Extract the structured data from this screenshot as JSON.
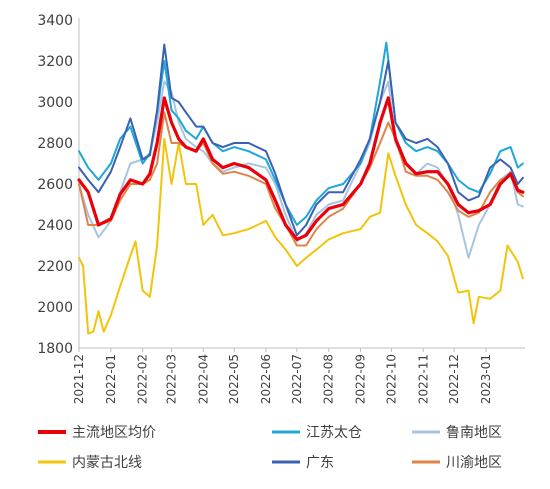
{
  "chart_data": {
    "type": "line",
    "title": "",
    "xlabel": "",
    "ylabel": "",
    "ylim": [
      1800,
      3400
    ],
    "yticks": [
      1800,
      2000,
      2200,
      2400,
      2600,
      2800,
      3000,
      3200,
      3400
    ],
    "grid": false,
    "legend_position": "bottom",
    "x_start": "2021-12",
    "x_end": "2023-01",
    "xticks": [
      "2021-12",
      "2022-01",
      "2022-02",
      "2022-03",
      "2022-04",
      "2022-05",
      "2022-06",
      "2022-07",
      "2022-08",
      "2022-09",
      "2022-10",
      "2022-11",
      "2022-12",
      "2023-01"
    ],
    "series": [
      {
        "name": "主流地区均价",
        "color": "#e8000b",
        "points": [
          [
            "2021-12-01",
            2620
          ],
          [
            "2021-12-10",
            2560
          ],
          [
            "2021-12-20",
            2400
          ],
          [
            "2022-01-01",
            2430
          ],
          [
            "2022-01-10",
            2550
          ],
          [
            "2022-01-20",
            2620
          ],
          [
            "2022-02-01",
            2600
          ],
          [
            "2022-02-08",
            2650
          ],
          [
            "2022-02-15",
            2800
          ],
          [
            "2022-02-22",
            3020
          ],
          [
            "2022-03-01",
            2900
          ],
          [
            "2022-03-08",
            2820
          ],
          [
            "2022-03-15",
            2780
          ],
          [
            "2022-03-25",
            2760
          ],
          [
            "2022-04-01",
            2820
          ],
          [
            "2022-04-10",
            2720
          ],
          [
            "2022-04-20",
            2680
          ],
          [
            "2022-05-01",
            2700
          ],
          [
            "2022-05-15",
            2680
          ],
          [
            "2022-06-01",
            2620
          ],
          [
            "2022-06-10",
            2520
          ],
          [
            "2022-06-20",
            2400
          ],
          [
            "2022-07-01",
            2330
          ],
          [
            "2022-07-10",
            2350
          ],
          [
            "2022-07-20",
            2420
          ],
          [
            "2022-08-01",
            2480
          ],
          [
            "2022-08-15",
            2500
          ],
          [
            "2022-09-01",
            2600
          ],
          [
            "2022-09-10",
            2700
          ],
          [
            "2022-09-20",
            2900
          ],
          [
            "2022-09-28",
            3020
          ],
          [
            "2022-10-05",
            2820
          ],
          [
            "2022-10-15",
            2700
          ],
          [
            "2022-10-25",
            2650
          ],
          [
            "2022-11-05",
            2660
          ],
          [
            "2022-11-15",
            2660
          ],
          [
            "2022-11-25",
            2600
          ],
          [
            "2022-12-05",
            2500
          ],
          [
            "2022-12-15",
            2460
          ],
          [
            "2022-12-25",
            2470
          ],
          [
            "2023-01-05",
            2500
          ],
          [
            "2023-01-15",
            2600
          ],
          [
            "2023-01-25",
            2650
          ],
          [
            "2023-02-01",
            2570
          ],
          [
            "2023-02-06",
            2560
          ]
        ]
      },
      {
        "name": "江苏太仓",
        "color": "#1ea7d8",
        "points": [
          [
            "2021-12-01",
            2760
          ],
          [
            "2021-12-10",
            2680
          ],
          [
            "2021-12-20",
            2620
          ],
          [
            "2022-01-01",
            2700
          ],
          [
            "2022-01-10",
            2820
          ],
          [
            "2022-01-20",
            2880
          ],
          [
            "2022-02-01",
            2700
          ],
          [
            "2022-02-08",
            2750
          ],
          [
            "2022-02-15",
            2950
          ],
          [
            "2022-02-22",
            3200
          ],
          [
            "2022-03-01",
            2960
          ],
          [
            "2022-03-08",
            2920
          ],
          [
            "2022-03-15",
            2860
          ],
          [
            "2022-03-25",
            2820
          ],
          [
            "2022-04-01",
            2880
          ],
          [
            "2022-04-10",
            2800
          ],
          [
            "2022-04-20",
            2760
          ],
          [
            "2022-05-01",
            2780
          ],
          [
            "2022-05-15",
            2760
          ],
          [
            "2022-06-01",
            2720
          ],
          [
            "2022-06-10",
            2620
          ],
          [
            "2022-06-20",
            2500
          ],
          [
            "2022-07-01",
            2400
          ],
          [
            "2022-07-10",
            2440
          ],
          [
            "2022-07-20",
            2520
          ],
          [
            "2022-08-01",
            2580
          ],
          [
            "2022-08-15",
            2600
          ],
          [
            "2022-09-01",
            2700
          ],
          [
            "2022-09-10",
            2820
          ],
          [
            "2022-09-20",
            3100
          ],
          [
            "2022-09-26",
            3290
          ],
          [
            "2022-10-05",
            2900
          ],
          [
            "2022-10-15",
            2800
          ],
          [
            "2022-10-25",
            2760
          ],
          [
            "2022-11-05",
            2780
          ],
          [
            "2022-11-15",
            2760
          ],
          [
            "2022-11-25",
            2700
          ],
          [
            "2022-12-05",
            2620
          ],
          [
            "2022-12-15",
            2580
          ],
          [
            "2022-12-25",
            2560
          ],
          [
            "2023-01-05",
            2650
          ],
          [
            "2023-01-15",
            2760
          ],
          [
            "2023-01-25",
            2780
          ],
          [
            "2023-02-01",
            2680
          ],
          [
            "2023-02-06",
            2700
          ]
        ]
      },
      {
        "name": "鲁南地区",
        "color": "#a9c4e0",
        "points": [
          [
            "2021-12-01",
            2600
          ],
          [
            "2021-12-10",
            2450
          ],
          [
            "2021-12-20",
            2340
          ],
          [
            "2022-01-01",
            2420
          ],
          [
            "2022-01-10",
            2560
          ],
          [
            "2022-01-20",
            2700
          ],
          [
            "2022-02-01",
            2720
          ],
          [
            "2022-02-08",
            2750
          ],
          [
            "2022-02-15",
            2900
          ],
          [
            "2022-02-22",
            3100
          ],
          [
            "2022-03-01",
            3050
          ],
          [
            "2022-03-08",
            2900
          ],
          [
            "2022-03-15",
            2820
          ],
          [
            "2022-03-25",
            2780
          ],
          [
            "2022-04-01",
            2760
          ],
          [
            "2022-04-10",
            2700
          ],
          [
            "2022-04-20",
            2660
          ],
          [
            "2022-05-01",
            2680
          ],
          [
            "2022-05-15",
            2700
          ],
          [
            "2022-06-01",
            2680
          ],
          [
            "2022-06-10",
            2600
          ],
          [
            "2022-06-20",
            2450
          ],
          [
            "2022-07-01",
            2320
          ],
          [
            "2022-07-10",
            2360
          ],
          [
            "2022-07-20",
            2450
          ],
          [
            "2022-08-01",
            2500
          ],
          [
            "2022-08-15",
            2520
          ],
          [
            "2022-09-01",
            2700
          ],
          [
            "2022-09-10",
            2800
          ],
          [
            "2022-09-20",
            3000
          ],
          [
            "2022-09-28",
            3100
          ],
          [
            "2022-10-05",
            2800
          ],
          [
            "2022-10-15",
            2700
          ],
          [
            "2022-10-25",
            2650
          ],
          [
            "2022-11-05",
            2700
          ],
          [
            "2022-11-15",
            2680
          ],
          [
            "2022-11-25",
            2600
          ],
          [
            "2022-12-05",
            2450
          ],
          [
            "2022-12-15",
            2240
          ],
          [
            "2022-12-25",
            2400
          ],
          [
            "2023-01-05",
            2500
          ],
          [
            "2023-01-15",
            2620
          ],
          [
            "2023-01-25",
            2660
          ],
          [
            "2023-02-01",
            2500
          ],
          [
            "2023-02-06",
            2490
          ]
        ]
      },
      {
        "name": "内蒙古北线",
        "color": "#f2c40c",
        "points": [
          [
            "2021-12-01",
            2240
          ],
          [
            "2021-12-05",
            2200
          ],
          [
            "2021-12-10",
            1870
          ],
          [
            "2021-12-15",
            1880
          ],
          [
            "2021-12-20",
            1980
          ],
          [
            "2021-12-25",
            1880
          ],
          [
            "2022-01-01",
            1960
          ],
          [
            "2022-01-10",
            2100
          ],
          [
            "2022-01-20",
            2250
          ],
          [
            "2022-01-25",
            2320
          ],
          [
            "2022-02-01",
            2080
          ],
          [
            "2022-02-08",
            2050
          ],
          [
            "2022-02-15",
            2300
          ],
          [
            "2022-02-22",
            2820
          ],
          [
            "2022-03-01",
            2600
          ],
          [
            "2022-03-08",
            2800
          ],
          [
            "2022-03-15",
            2600
          ],
          [
            "2022-03-25",
            2600
          ],
          [
            "2022-04-01",
            2400
          ],
          [
            "2022-04-10",
            2450
          ],
          [
            "2022-04-20",
            2350
          ],
          [
            "2022-05-01",
            2360
          ],
          [
            "2022-05-15",
            2380
          ],
          [
            "2022-06-01",
            2420
          ],
          [
            "2022-06-10",
            2340
          ],
          [
            "2022-06-20",
            2280
          ],
          [
            "2022-07-01",
            2200
          ],
          [
            "2022-07-10",
            2240
          ],
          [
            "2022-07-20",
            2280
          ],
          [
            "2022-08-01",
            2330
          ],
          [
            "2022-08-15",
            2360
          ],
          [
            "2022-09-01",
            2380
          ],
          [
            "2022-09-10",
            2440
          ],
          [
            "2022-09-20",
            2460
          ],
          [
            "2022-09-28",
            2750
          ],
          [
            "2022-10-05",
            2640
          ],
          [
            "2022-10-15",
            2500
          ],
          [
            "2022-10-25",
            2400
          ],
          [
            "2022-11-05",
            2360
          ],
          [
            "2022-11-15",
            2320
          ],
          [
            "2022-11-25",
            2250
          ],
          [
            "2022-12-05",
            2070
          ],
          [
            "2022-12-15",
            2080
          ],
          [
            "2022-12-20",
            1920
          ],
          [
            "2022-12-25",
            2050
          ],
          [
            "2023-01-05",
            2040
          ],
          [
            "2023-01-15",
            2080
          ],
          [
            "2023-01-22",
            2300
          ],
          [
            "2023-02-01",
            2220
          ],
          [
            "2023-02-06",
            2140
          ]
        ]
      },
      {
        "name": "广东",
        "color": "#3a62b3",
        "points": [
          [
            "2021-12-01",
            2680
          ],
          [
            "2021-12-10",
            2620
          ],
          [
            "2021-12-20",
            2560
          ],
          [
            "2022-01-01",
            2660
          ],
          [
            "2022-01-10",
            2780
          ],
          [
            "2022-01-20",
            2920
          ],
          [
            "2022-02-01",
            2720
          ],
          [
            "2022-02-08",
            2740
          ],
          [
            "2022-02-15",
            2960
          ],
          [
            "2022-02-22",
            3280
          ],
          [
            "2022-03-01",
            3020
          ],
          [
            "2022-03-08",
            3000
          ],
          [
            "2022-03-15",
            2950
          ],
          [
            "2022-03-25",
            2880
          ],
          [
            "2022-04-01",
            2880
          ],
          [
            "2022-04-10",
            2800
          ],
          [
            "2022-04-20",
            2780
          ],
          [
            "2022-05-01",
            2800
          ],
          [
            "2022-05-15",
            2800
          ],
          [
            "2022-06-01",
            2760
          ],
          [
            "2022-06-10",
            2650
          ],
          [
            "2022-06-20",
            2500
          ],
          [
            "2022-07-01",
            2350
          ],
          [
            "2022-07-10",
            2400
          ],
          [
            "2022-07-20",
            2500
          ],
          [
            "2022-08-01",
            2560
          ],
          [
            "2022-08-15",
            2560
          ],
          [
            "2022-09-01",
            2720
          ],
          [
            "2022-09-10",
            2820
          ],
          [
            "2022-09-20",
            3000
          ],
          [
            "2022-09-28",
            3200
          ],
          [
            "2022-10-05",
            2900
          ],
          [
            "2022-10-15",
            2820
          ],
          [
            "2022-10-25",
            2800
          ],
          [
            "2022-11-05",
            2820
          ],
          [
            "2022-11-15",
            2780
          ],
          [
            "2022-11-25",
            2700
          ],
          [
            "2022-12-05",
            2560
          ],
          [
            "2022-12-15",
            2520
          ],
          [
            "2022-12-25",
            2540
          ],
          [
            "2023-01-05",
            2680
          ],
          [
            "2023-01-15",
            2720
          ],
          [
            "2023-01-25",
            2680
          ],
          [
            "2023-02-01",
            2600
          ],
          [
            "2023-02-06",
            2630
          ]
        ]
      },
      {
        "name": "川渝地区",
        "color": "#e0844a",
        "points": [
          [
            "2021-12-01",
            2600
          ],
          [
            "2021-12-10",
            2400
          ],
          [
            "2021-12-20",
            2400
          ],
          [
            "2022-01-01",
            2420
          ],
          [
            "2022-01-10",
            2520
          ],
          [
            "2022-01-20",
            2600
          ],
          [
            "2022-02-01",
            2600
          ],
          [
            "2022-02-08",
            2620
          ],
          [
            "2022-02-15",
            2700
          ],
          [
            "2022-02-22",
            2950
          ],
          [
            "2022-03-01",
            2800
          ],
          [
            "2022-03-08",
            2800
          ],
          [
            "2022-03-15",
            2780
          ],
          [
            "2022-03-25",
            2760
          ],
          [
            "2022-04-01",
            2800
          ],
          [
            "2022-04-10",
            2700
          ],
          [
            "2022-04-20",
            2650
          ],
          [
            "2022-05-01",
            2660
          ],
          [
            "2022-05-15",
            2640
          ],
          [
            "2022-06-01",
            2600
          ],
          [
            "2022-06-10",
            2480
          ],
          [
            "2022-06-20",
            2400
          ],
          [
            "2022-07-01",
            2300
          ],
          [
            "2022-07-10",
            2300
          ],
          [
            "2022-07-20",
            2380
          ],
          [
            "2022-08-01",
            2440
          ],
          [
            "2022-08-15",
            2480
          ],
          [
            "2022-09-01",
            2600
          ],
          [
            "2022-09-10",
            2680
          ],
          [
            "2022-09-20",
            2800
          ],
          [
            "2022-09-28",
            2900
          ],
          [
            "2022-10-05",
            2820
          ],
          [
            "2022-10-15",
            2660
          ],
          [
            "2022-10-25",
            2640
          ],
          [
            "2022-11-05",
            2640
          ],
          [
            "2022-11-15",
            2620
          ],
          [
            "2022-11-25",
            2560
          ],
          [
            "2022-12-05",
            2470
          ],
          [
            "2022-12-15",
            2440
          ],
          [
            "2022-12-25",
            2460
          ],
          [
            "2023-01-05",
            2560
          ],
          [
            "2023-01-15",
            2620
          ],
          [
            "2023-01-25",
            2640
          ],
          [
            "2023-02-01",
            2560
          ],
          [
            "2023-02-06",
            2540
          ]
        ]
      }
    ]
  }
}
